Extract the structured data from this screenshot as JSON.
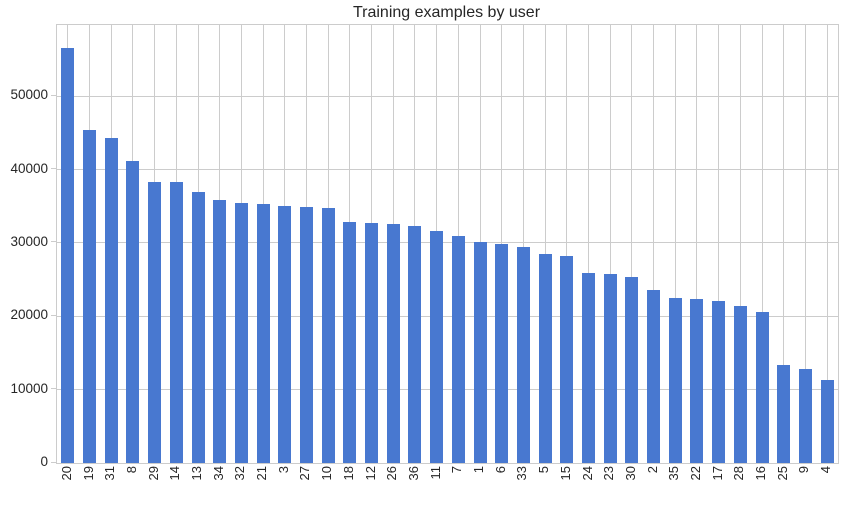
{
  "title": "Training examples by user",
  "colors": {
    "bar": "#4878d0",
    "grid": "#cccccc",
    "text": "#262626",
    "background": "#ffffff"
  },
  "chart_data": {
    "type": "bar",
    "title": "Training examples by user",
    "xlabel": "",
    "ylabel": "",
    "legend": null,
    "grid": true,
    "x_tick_rotation": 90,
    "categories": [
      "20",
      "19",
      "31",
      "8",
      "29",
      "14",
      "13",
      "34",
      "32",
      "21",
      "3",
      "27",
      "10",
      "18",
      "12",
      "26",
      "36",
      "11",
      "7",
      "1",
      "6",
      "33",
      "5",
      "15",
      "24",
      "23",
      "30",
      "2",
      "35",
      "22",
      "17",
      "28",
      "16",
      "25",
      "9",
      "4"
    ],
    "values": [
      56600,
      45400,
      44300,
      41200,
      38350,
      38250,
      37000,
      35900,
      35500,
      35300,
      35100,
      34950,
      34800,
      32850,
      32700,
      32600,
      32350,
      31650,
      30950,
      30100,
      29800,
      29400,
      28550,
      28250,
      25850,
      25800,
      25350,
      23600,
      22450,
      22350,
      22100,
      21400,
      20600,
      13350,
      12800,
      11300
    ],
    "y_ticks": [
      0,
      10000,
      20000,
      30000,
      40000,
      50000
    ],
    "ylim": [
      0,
      59700
    ]
  }
}
